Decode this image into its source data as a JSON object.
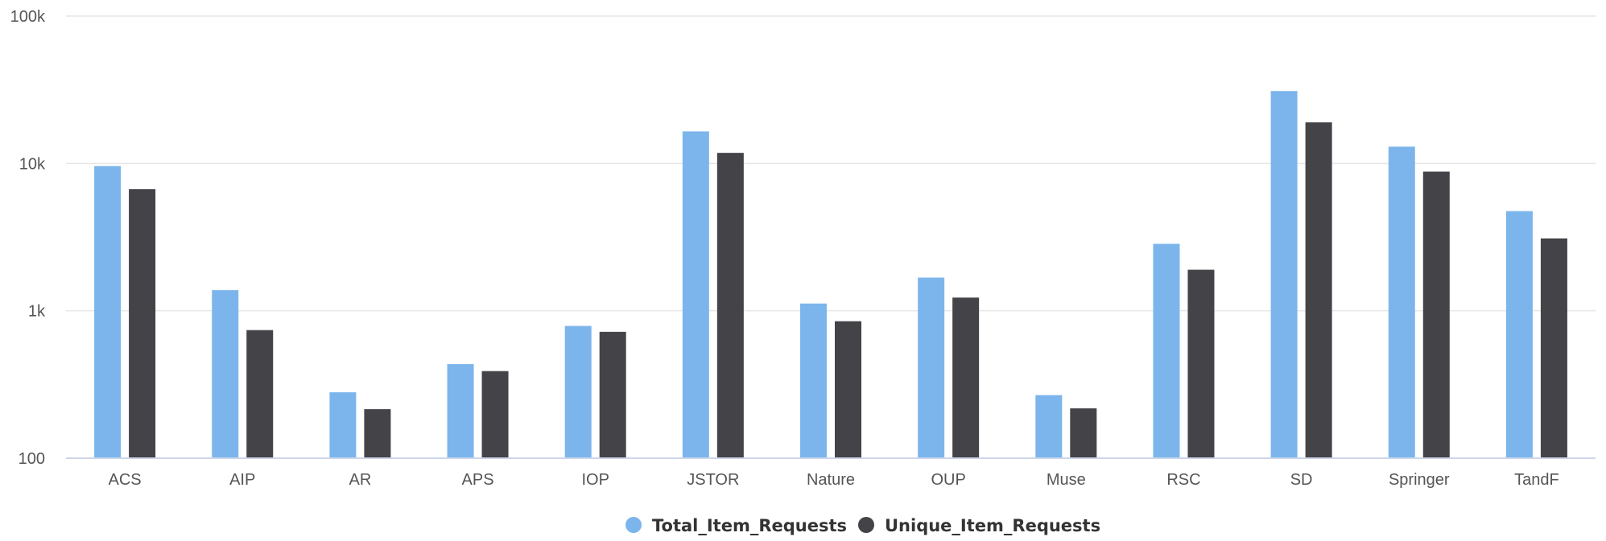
{
  "chart_data": {
    "type": "bar",
    "title": "",
    "xlabel": "",
    "ylabel": "",
    "yscale": "log",
    "ylim": [
      100,
      100000
    ],
    "yticks": [
      {
        "value": 100,
        "label": "100"
      },
      {
        "value": 1000,
        "label": "1k"
      },
      {
        "value": 10000,
        "label": "10k"
      },
      {
        "value": 100000,
        "label": "100k"
      }
    ],
    "grid": true,
    "legend_position": "bottom-center",
    "categories": [
      "ACS",
      "AIP",
      "AR",
      "APS",
      "IOP",
      "JSTOR",
      "Nature",
      "OUP",
      "Muse",
      "RSC",
      "SD",
      "Springer",
      "TandF"
    ],
    "series": [
      {
        "name": "Total_Item_Requests",
        "color": "#7cb5ec",
        "values": [
          9600,
          1380,
          280,
          435,
          790,
          16500,
          1120,
          1680,
          268,
          2850,
          31000,
          13000,
          4750
        ]
      },
      {
        "name": "Unique_Item_Requests",
        "color": "#434348",
        "values": [
          6700,
          740,
          215,
          390,
          720,
          11800,
          850,
          1230,
          218,
          1900,
          19000,
          8800,
          3100
        ]
      }
    ],
    "colors": {
      "grid": "#e6e6e6",
      "axis": "#ccd6eb",
      "tick_text": "#555555",
      "legend_text": "#333333"
    }
  }
}
